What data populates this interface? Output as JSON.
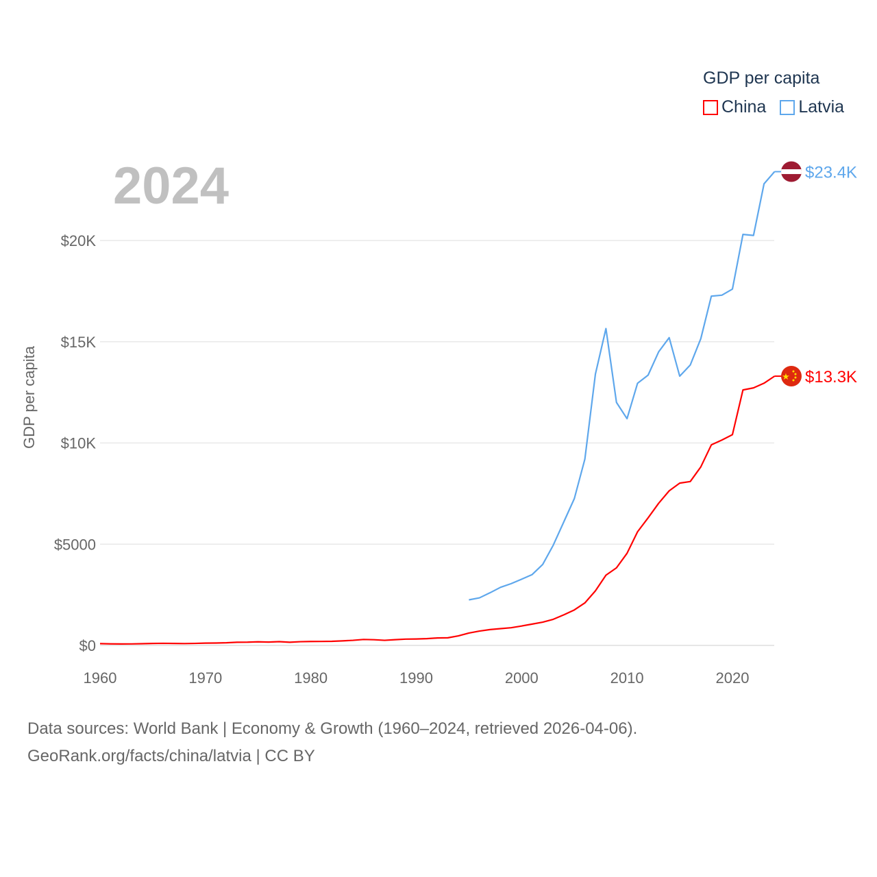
{
  "chart_data": {
    "type": "line",
    "title": "GDP per capita",
    "ylabel": "GDP per capita",
    "xlabel": "",
    "xlim": [
      1960,
      2024
    ],
    "ylim": [
      0,
      24000
    ],
    "x_ticks": [
      1960,
      1970,
      1980,
      1990,
      2000,
      2010,
      2020
    ],
    "x_tick_labels": [
      "1960",
      "1970",
      "1980",
      "1990",
      "2000",
      "2010",
      "2020"
    ],
    "y_ticks": [
      0,
      5000,
      10000,
      15000,
      20000
    ],
    "y_tick_labels": [
      "$0",
      "$5000",
      "$10K",
      "$15K",
      "$20K"
    ],
    "grid": true,
    "legend_placement": "top-right",
    "current_year": "2024",
    "series": [
      {
        "name": "China",
        "color": "#ff0000",
        "end_label": "$13.3K",
        "flag": "china-flag",
        "x": [
          1960,
          1961,
          1962,
          1963,
          1964,
          1965,
          1966,
          1967,
          1968,
          1969,
          1970,
          1971,
          1972,
          1973,
          1974,
          1975,
          1976,
          1977,
          1978,
          1979,
          1980,
          1981,
          1982,
          1983,
          1984,
          1985,
          1986,
          1987,
          1988,
          1989,
          1990,
          1991,
          1992,
          1993,
          1994,
          1995,
          1996,
          1997,
          1998,
          1999,
          2000,
          2001,
          2002,
          2003,
          2004,
          2005,
          2006,
          2007,
          2008,
          2009,
          2010,
          2011,
          2012,
          2013,
          2014,
          2015,
          2016,
          2017,
          2018,
          2019,
          2020,
          2021,
          2022,
          2023,
          2024
        ],
        "values": [
          90,
          76,
          71,
          74,
          85,
          98,
          104,
          97,
          91,
          100,
          113,
          119,
          132,
          157,
          160,
          178,
          165,
          185,
          156,
          184,
          195,
          197,
          203,
          225,
          251,
          294,
          282,
          252,
          284,
          311,
          318,
          333,
          368,
          377,
          473,
          610,
          709,
          782,
          829,
          873,
          959,
          1053,
          1149,
          1289,
          1509,
          1753,
          2099,
          2694,
          3468,
          3832,
          4550,
          5614,
          6301,
          7020,
          7636,
          8016,
          8094,
          8817,
          9905,
          10144,
          10409,
          12618,
          12720,
          12951,
          13300
        ]
      },
      {
        "name": "Latvia",
        "color": "#5ea7ec",
        "end_label": "$23.4K",
        "flag": "latvia-flag",
        "x": [
          1995,
          1996,
          1997,
          1998,
          1999,
          2000,
          2001,
          2002,
          2003,
          2004,
          2005,
          2006,
          2007,
          2008,
          2009,
          2010,
          2011,
          2012,
          2013,
          2014,
          2015,
          2016,
          2017,
          2018,
          2019,
          2020,
          2021,
          2022,
          2023,
          2024
        ],
        "values": [
          2250,
          2350,
          2600,
          2870,
          3050,
          3270,
          3500,
          4000,
          4950,
          6100,
          7250,
          9200,
          13400,
          15650,
          12000,
          11200,
          12950,
          13350,
          14500,
          15200,
          13300,
          13850,
          15150,
          17250,
          17300,
          17600,
          20300,
          20250,
          22800,
          23400
        ]
      }
    ]
  },
  "footer": {
    "line1": "Data sources: World Bank | Economy & Growth (1960–2024, retrieved 2026-04-06).",
    "line2": "GeoRank.org/facts/china/latvia | CC BY"
  }
}
